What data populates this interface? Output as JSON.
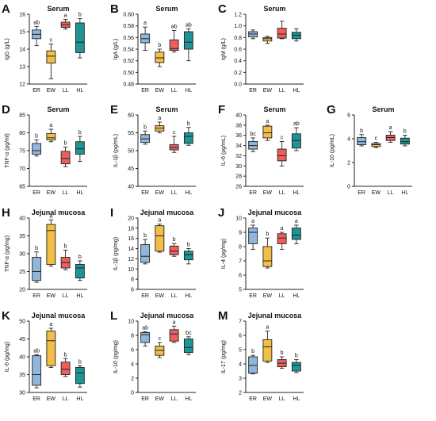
{
  "colors": {
    "ER": "#8FB7DC",
    "EW": "#F2BE45",
    "LL": "#EE5E5E",
    "HL": "#1E9494",
    "axis": "#222222"
  },
  "chart_data": [
    {
      "id": "A",
      "type": "box",
      "title": "Serum",
      "ylabel": "IgG (g/L)",
      "categories": [
        "ER",
        "EW",
        "LL",
        "HL"
      ],
      "ylim": [
        12,
        16
      ],
      "ticks": [
        12,
        13,
        14,
        15,
        16
      ],
      "tick_labels": [
        "12",
        "13",
        "14",
        "15",
        "16"
      ],
      "boxes": [
        {
          "group": "ER",
          "min": 14.2,
          "q1": 14.6,
          "median": 14.85,
          "q3": 15.1,
          "max": 15.3,
          "sig": "ab"
        },
        {
          "group": "EW",
          "min": 12.3,
          "q1": 13.2,
          "median": 13.6,
          "q3": 13.9,
          "max": 14.3,
          "sig": "c"
        },
        {
          "group": "LL",
          "min": 15.15,
          "q1": 15.25,
          "median": 15.4,
          "q3": 15.55,
          "max": 15.7,
          "sig": "a"
        },
        {
          "group": "HL",
          "min": 13.5,
          "q1": 13.8,
          "median": 14.4,
          "q3": 15.5,
          "max": 15.75,
          "sig": "b"
        }
      ]
    },
    {
      "id": "B",
      "type": "box",
      "title": "Serum",
      "ylabel": "IgA (g/L)",
      "categories": [
        "ER",
        "EW",
        "LL",
        "HL"
      ],
      "ylim": [
        0.48,
        0.6
      ],
      "ticks": [
        0.48,
        0.5,
        0.52,
        0.54,
        0.56,
        0.58,
        0.6
      ],
      "tick_labels": [
        "0.48",
        "0.50",
        "0.52",
        "0.54",
        "0.56",
        "0.58",
        "0.60"
      ],
      "boxes": [
        {
          "group": "ER",
          "min": 0.538,
          "q1": 0.551,
          "median": 0.558,
          "q3": 0.566,
          "max": 0.578,
          "sig": "a"
        },
        {
          "group": "EW",
          "min": 0.51,
          "q1": 0.517,
          "median": 0.525,
          "q3": 0.535,
          "max": 0.54,
          "sig": "b"
        },
        {
          "group": "LL",
          "min": 0.535,
          "q1": 0.538,
          "median": 0.541,
          "q3": 0.556,
          "max": 0.572,
          "sig": "ab"
        },
        {
          "group": "HL",
          "min": 0.52,
          "q1": 0.54,
          "median": 0.552,
          "q3": 0.57,
          "max": 0.575,
          "sig": "ab"
        }
      ]
    },
    {
      "id": "C",
      "type": "box",
      "title": "Serum",
      "ylabel": "IgM (g/L)",
      "categories": [
        "ER",
        "EW",
        "LL",
        "HL"
      ],
      "ylim": [
        0,
        1.2
      ],
      "ticks": [
        0,
        0.2,
        0.4,
        0.6,
        0.8,
        1.0,
        1.2
      ],
      "tick_labels": [
        "0.0",
        "0.2",
        "0.4",
        "0.6",
        "0.8",
        "1.0",
        "1.2"
      ],
      "boxes": [
        {
          "group": "ER",
          "min": 0.78,
          "q1": 0.81,
          "median": 0.86,
          "q3": 0.9,
          "max": 0.93,
          "sig": ""
        },
        {
          "group": "EW",
          "min": 0.7,
          "q1": 0.74,
          "median": 0.78,
          "q3": 0.8,
          "max": 0.82,
          "sig": ""
        },
        {
          "group": "LL",
          "min": 0.78,
          "q1": 0.79,
          "median": 0.86,
          "q3": 0.96,
          "max": 1.08,
          "sig": ""
        },
        {
          "group": "HL",
          "min": 0.74,
          "q1": 0.78,
          "median": 0.84,
          "q3": 0.89,
          "max": 0.95,
          "sig": ""
        }
      ]
    },
    {
      "id": "D",
      "type": "box",
      "title": "Serum",
      "ylabel": "TNF-α (pg/ml)",
      "categories": [
        "ER",
        "EW",
        "LL",
        "HL"
      ],
      "ylim": [
        65,
        85
      ],
      "ticks": [
        65,
        70,
        75,
        80,
        85
      ],
      "tick_labels": [
        "65",
        "70",
        "75",
        "80",
        "85"
      ],
      "boxes": [
        {
          "group": "ER",
          "min": 73.5,
          "q1": 74.0,
          "median": 75.0,
          "q3": 77.0,
          "max": 78.0,
          "sig": "b"
        },
        {
          "group": "EW",
          "min": 77.5,
          "q1": 78.0,
          "median": 78.6,
          "q3": 79.8,
          "max": 81.0,
          "sig": "a"
        },
        {
          "group": "LL",
          "min": 70.5,
          "q1": 71.3,
          "median": 72.8,
          "q3": 74.8,
          "max": 76.0,
          "sig": "b"
        },
        {
          "group": "HL",
          "min": 72.0,
          "q1": 74.0,
          "median": 75.5,
          "q3": 77.5,
          "max": 79.0,
          "sig": "b"
        }
      ]
    },
    {
      "id": "E",
      "type": "box",
      "title": "Serum",
      "ylabel": "IL-1β (pg/mL)",
      "categories": [
        "ER",
        "EW",
        "LL",
        "HL"
      ],
      "ylim": [
        40,
        60
      ],
      "ticks": [
        40,
        45,
        50,
        55,
        60
      ],
      "tick_labels": [
        "40",
        "45",
        "50",
        "55",
        "60"
      ],
      "boxes": [
        {
          "group": "ER",
          "min": 51.8,
          "q1": 52.3,
          "median": 53.3,
          "q3": 54.5,
          "max": 55.5,
          "sig": "b"
        },
        {
          "group": "EW",
          "min": 55.0,
          "q1": 55.5,
          "median": 56.3,
          "q3": 57.0,
          "max": 58.0,
          "sig": "a"
        },
        {
          "group": "LL",
          "min": 49.5,
          "q1": 50.2,
          "median": 50.9,
          "q3": 51.7,
          "max": 54.0,
          "sig": "c"
        },
        {
          "group": "HL",
          "min": 51.5,
          "q1": 52.0,
          "median": 54.0,
          "q3": 55.0,
          "max": 56.5,
          "sig": "b"
        }
      ]
    },
    {
      "id": "F",
      "type": "box",
      "title": "Serum",
      "ylabel": "IL-6 (pg/mL)",
      "categories": [
        "ER",
        "EW",
        "LL",
        "HL"
      ],
      "ylim": [
        26,
        40
      ],
      "ticks": [
        26,
        28,
        30,
        32,
        34,
        36,
        38,
        40
      ],
      "tick_labels": [
        "26",
        "28",
        "30",
        "32",
        "34",
        "36",
        "38",
        "40"
      ],
      "boxes": [
        {
          "group": "ER",
          "min": 32.8,
          "q1": 33.3,
          "median": 34.0,
          "q3": 34.8,
          "max": 35.5,
          "sig": "bc"
        },
        {
          "group": "EW",
          "min": 35.0,
          "q1": 35.5,
          "median": 36.5,
          "q3": 37.8,
          "max": 38.0,
          "sig": "a"
        },
        {
          "group": "LL",
          "min": 30.0,
          "q1": 31.0,
          "median": 32.0,
          "q3": 33.3,
          "max": 34.8,
          "sig": "c"
        },
        {
          "group": "HL",
          "min": 33.0,
          "q1": 33.5,
          "median": 35.0,
          "q3": 36.3,
          "max": 37.5,
          "sig": "ab"
        }
      ]
    },
    {
      "id": "G",
      "type": "box",
      "title": "Serum",
      "ylabel": "IL-10 (pg/mL)",
      "categories": [
        "ER",
        "EW",
        "LL",
        "HL"
      ],
      "ylim": [
        0,
        6
      ],
      "ticks": [
        0,
        2,
        4,
        6
      ],
      "tick_labels": [
        "0",
        "2",
        "4",
        "6"
      ],
      "boxes": [
        {
          "group": "ER",
          "min": 3.4,
          "q1": 3.5,
          "median": 3.75,
          "q3": 4.1,
          "max": 4.35,
          "sig": "b"
        },
        {
          "group": "EW",
          "min": 3.25,
          "q1": 3.35,
          "median": 3.5,
          "q3": 3.6,
          "max": 3.7,
          "sig": "c"
        },
        {
          "group": "LL",
          "min": 3.7,
          "q1": 3.85,
          "median": 4.1,
          "q3": 4.3,
          "max": 4.6,
          "sig": "a"
        },
        {
          "group": "HL",
          "min": 3.4,
          "q1": 3.55,
          "median": 3.75,
          "q3": 4.05,
          "max": 4.3,
          "sig": "b"
        }
      ]
    },
    {
      "id": "H",
      "type": "box",
      "title": "Jejunal mucosa",
      "ylabel": "TNF-α (pg/mg)",
      "categories": [
        "ER",
        "EW",
        "LL",
        "HL"
      ],
      "ylim": [
        20,
        40
      ],
      "ticks": [
        20,
        25,
        30,
        35,
        40
      ],
      "tick_labels": [
        "20",
        "25",
        "30",
        "35",
        "40"
      ],
      "boxes": [
        {
          "group": "ER",
          "min": 22.0,
          "q1": 22.5,
          "median": 25.0,
          "q3": 29.0,
          "max": 30.5,
          "sig": "b"
        },
        {
          "group": "EW",
          "min": 26.5,
          "q1": 27.0,
          "median": 36.5,
          "q3": 38.2,
          "max": 39.5,
          "sig": "a"
        },
        {
          "group": "LL",
          "min": 25.5,
          "q1": 26.0,
          "median": 27.5,
          "q3": 29.0,
          "max": 31.0,
          "sig": "b"
        },
        {
          "group": "HL",
          "min": 22.5,
          "q1": 23.2,
          "median": 26.0,
          "q3": 27.0,
          "max": 28.0,
          "sig": "b"
        }
      ]
    },
    {
      "id": "I",
      "type": "box",
      "title": "Jejunal mucosa",
      "ylabel": "IL-1β (pg/mg)",
      "categories": [
        "ER",
        "EW",
        "LL",
        "HL"
      ],
      "ylim": [
        6,
        20
      ],
      "ticks": [
        6,
        8,
        10,
        12,
        14,
        16,
        18,
        20
      ],
      "tick_labels": [
        "6",
        "8",
        "10",
        "12",
        "14",
        "16",
        "18",
        "20"
      ],
      "boxes": [
        {
          "group": "ER",
          "min": 11.0,
          "q1": 11.3,
          "median": 12.5,
          "q3": 14.8,
          "max": 15.8,
          "sig": "b"
        },
        {
          "group": "EW",
          "min": 13.3,
          "q1": 13.5,
          "median": 16.5,
          "q3": 18.5,
          "max": 18.8,
          "sig": "a"
        },
        {
          "group": "LL",
          "min": 12.5,
          "q1": 12.8,
          "median": 13.5,
          "q3": 14.5,
          "max": 15.0,
          "sig": "b"
        },
        {
          "group": "HL",
          "min": 11.0,
          "q1": 11.8,
          "median": 12.8,
          "q3": 13.5,
          "max": 14.0,
          "sig": "b"
        }
      ]
    },
    {
      "id": "J",
      "type": "box",
      "title": "Jejunal mucosa",
      "ylabel": "IL-4 (pg/mg)",
      "categories": [
        "ER",
        "EW",
        "LL",
        "HL"
      ],
      "ylim": [
        5,
        10
      ],
      "ticks": [
        5,
        6,
        7,
        8,
        9,
        10
      ],
      "tick_labels": [
        "5",
        "6",
        "7",
        "8",
        "9",
        "10"
      ],
      "boxes": [
        {
          "group": "ER",
          "min": 7.8,
          "q1": 8.2,
          "median": 9.0,
          "q3": 9.3,
          "max": 9.5,
          "sig": "a"
        },
        {
          "group": "EW",
          "min": 6.5,
          "q1": 6.6,
          "median": 7.0,
          "q3": 8.0,
          "max": 8.6,
          "sig": "b"
        },
        {
          "group": "LL",
          "min": 7.8,
          "q1": 8.2,
          "median": 8.6,
          "q3": 8.9,
          "max": 9.0,
          "sig": "a"
        },
        {
          "group": "HL",
          "min": 8.2,
          "q1": 8.5,
          "median": 8.8,
          "q3": 9.3,
          "max": 9.5,
          "sig": "a"
        }
      ]
    },
    {
      "id": "K",
      "type": "box",
      "title": "Jejunal mucosa",
      "ylabel": "IL-6 (pg/mg)",
      "categories": [
        "ER",
        "EW",
        "LL",
        "HL"
      ],
      "ylim": [
        30,
        50
      ],
      "ticks": [
        30,
        35,
        40,
        45,
        50
      ],
      "tick_labels": [
        "30",
        "35",
        "40",
        "45",
        "50"
      ],
      "boxes": [
        {
          "group": "ER",
          "min": 31.3,
          "q1": 32.0,
          "median": 35.0,
          "q3": 40.3,
          "max": 40.6,
          "sig": "ab"
        },
        {
          "group": "EW",
          "min": 37.0,
          "q1": 37.5,
          "median": 44.5,
          "q3": 47.2,
          "max": 48.0,
          "sig": "a"
        },
        {
          "group": "LL",
          "min": 34.5,
          "q1": 35.0,
          "median": 36.5,
          "q3": 38.5,
          "max": 39.5,
          "sig": "b"
        },
        {
          "group": "HL",
          "min": 31.5,
          "q1": 32.5,
          "median": 35.5,
          "q3": 37.0,
          "max": 37.5,
          "sig": "b"
        }
      ]
    },
    {
      "id": "L",
      "type": "box",
      "title": "Jejunal mucosa",
      "ylabel": "IL-10 (pg/mg)",
      "categories": [
        "ER",
        "EW",
        "LL",
        "HL"
      ],
      "ylim": [
        0,
        10
      ],
      "ticks": [
        0,
        2,
        4,
        6,
        8,
        10
      ],
      "tick_labels": [
        "0",
        "2",
        "4",
        "6",
        "8",
        "10"
      ],
      "boxes": [
        {
          "group": "ER",
          "min": 6.5,
          "q1": 7.0,
          "median": 8.1,
          "q3": 8.4,
          "max": 8.5,
          "sig": "ab"
        },
        {
          "group": "EW",
          "min": 4.9,
          "q1": 5.2,
          "median": 5.9,
          "q3": 6.5,
          "max": 7.0,
          "sig": "c"
        },
        {
          "group": "LL",
          "min": 7.0,
          "q1": 7.2,
          "median": 8.2,
          "q3": 8.8,
          "max": 9.3,
          "sig": "a"
        },
        {
          "group": "HL",
          "min": 5.3,
          "q1": 5.6,
          "median": 6.3,
          "q3": 7.5,
          "max": 7.8,
          "sig": "bc"
        }
      ]
    },
    {
      "id": "M",
      "type": "box",
      "title": "Jejunal mucosa",
      "ylabel": "IL-17 (pg/mg)",
      "categories": [
        "ER",
        "EW",
        "LL",
        "HL"
      ],
      "ylim": [
        2,
        7
      ],
      "ticks": [
        2,
        3,
        4,
        5,
        6,
        7
      ],
      "tick_labels": [
        "2",
        "3",
        "4",
        "5",
        "6",
        "7"
      ],
      "boxes": [
        {
          "group": "ER",
          "min": 3.3,
          "q1": 3.35,
          "median": 3.9,
          "q3": 4.5,
          "max": 4.6,
          "sig": "b"
        },
        {
          "group": "EW",
          "min": 4.1,
          "q1": 4.2,
          "median": 5.2,
          "q3": 5.7,
          "max": 6.3,
          "sig": "a"
        },
        {
          "group": "LL",
          "min": 3.7,
          "q1": 3.8,
          "median": 4.05,
          "q3": 4.3,
          "max": 4.5,
          "sig": "b"
        },
        {
          "group": "HL",
          "min": 3.4,
          "q1": 3.5,
          "median": 3.9,
          "q3": 4.1,
          "max": 4.3,
          "sig": "b"
        }
      ]
    }
  ]
}
